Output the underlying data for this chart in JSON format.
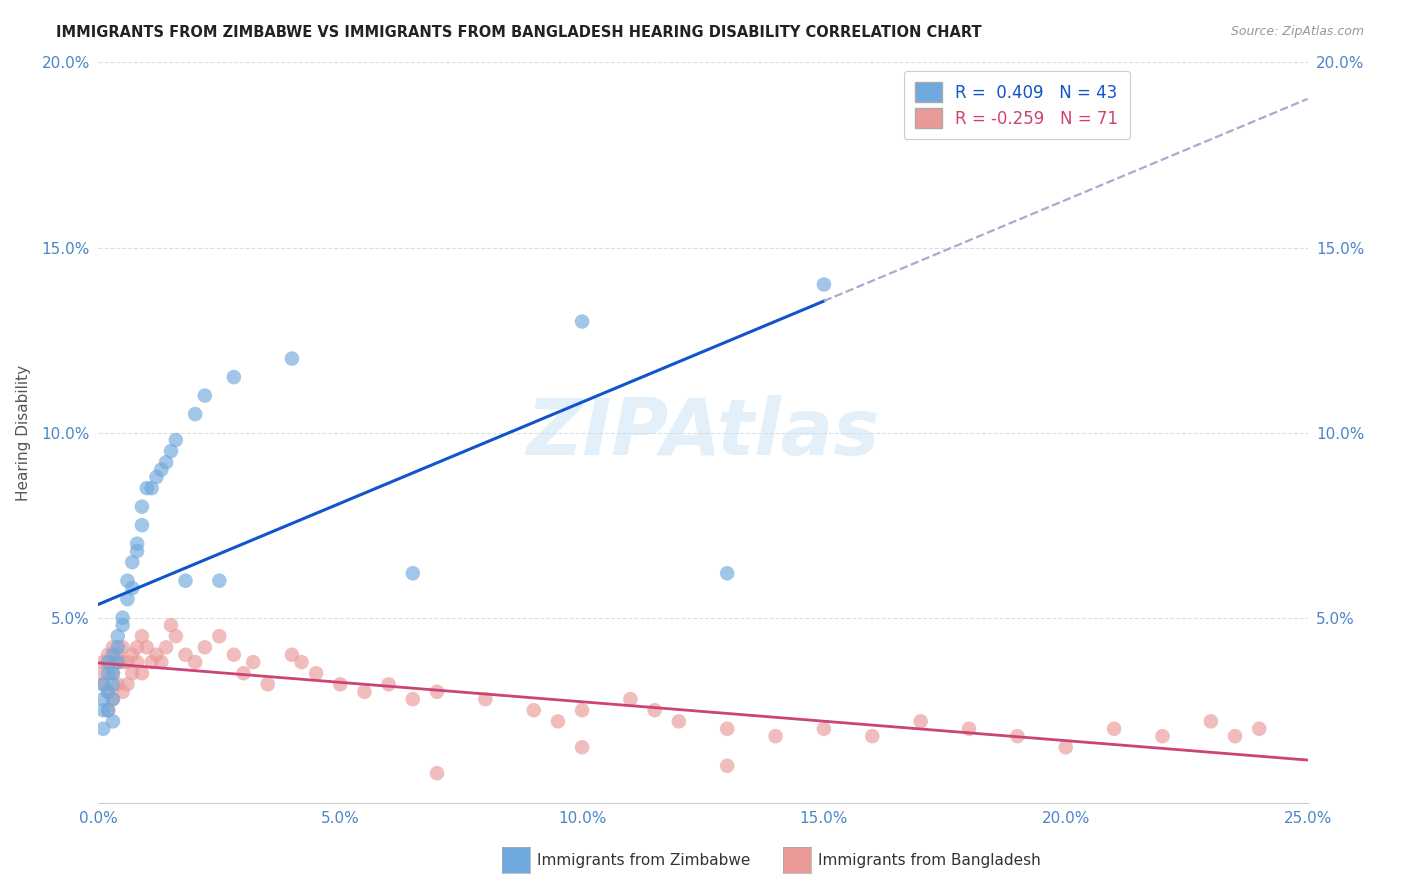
{
  "title": "IMMIGRANTS FROM ZIMBABWE VS IMMIGRANTS FROM BANGLADESH HEARING DISABILITY CORRELATION CHART",
  "source": "Source: ZipAtlas.com",
  "ylabel": "Hearing Disability",
  "xlim": [
    0.0,
    0.25
  ],
  "ylim": [
    0.0,
    0.2
  ],
  "xticks": [
    0.0,
    0.05,
    0.1,
    0.15,
    0.2,
    0.25
  ],
  "yticks": [
    0.0,
    0.05,
    0.1,
    0.15,
    0.2
  ],
  "zimbabwe_color": "#6fa8dc",
  "bangladesh_color": "#ea9999",
  "zimbabwe_trend_color": "#1155cc",
  "bangladesh_trend_color": "#cc4477",
  "dashed_trend_color": "#aaaacc",
  "legend_label1": "Immigrants from Zimbabwe",
  "legend_label2": "Immigrants from Bangladesh",
  "tick_color": "#4a86c8",
  "watermark_color": "#cce4f5",
  "zim_x": [
    0.001,
    0.001,
    0.001,
    0.001,
    0.002,
    0.002,
    0.002,
    0.002,
    0.003,
    0.003,
    0.003,
    0.003,
    0.003,
    0.004,
    0.004,
    0.004,
    0.005,
    0.005,
    0.006,
    0.006,
    0.007,
    0.007,
    0.008,
    0.008,
    0.009,
    0.009,
    0.01,
    0.011,
    0.012,
    0.013,
    0.014,
    0.015,
    0.016,
    0.018,
    0.02,
    0.022,
    0.025,
    0.028,
    0.04,
    0.065,
    0.1,
    0.13,
    0.15
  ],
  "zim_y": [
    0.028,
    0.032,
    0.025,
    0.02,
    0.035,
    0.038,
    0.03,
    0.025,
    0.04,
    0.035,
    0.032,
    0.028,
    0.022,
    0.045,
    0.042,
    0.038,
    0.05,
    0.048,
    0.055,
    0.06,
    0.058,
    0.065,
    0.07,
    0.068,
    0.075,
    0.08,
    0.085,
    0.085,
    0.088,
    0.09,
    0.092,
    0.095,
    0.098,
    0.06,
    0.105,
    0.11,
    0.06,
    0.115,
    0.12,
    0.062,
    0.13,
    0.062,
    0.14
  ],
  "ban_x": [
    0.001,
    0.001,
    0.001,
    0.002,
    0.002,
    0.002,
    0.002,
    0.003,
    0.003,
    0.003,
    0.003,
    0.004,
    0.004,
    0.004,
    0.005,
    0.005,
    0.005,
    0.006,
    0.006,
    0.007,
    0.007,
    0.008,
    0.008,
    0.009,
    0.009,
    0.01,
    0.011,
    0.012,
    0.013,
    0.014,
    0.015,
    0.016,
    0.018,
    0.02,
    0.022,
    0.025,
    0.028,
    0.03,
    0.032,
    0.035,
    0.04,
    0.042,
    0.045,
    0.05,
    0.055,
    0.06,
    0.065,
    0.07,
    0.08,
    0.09,
    0.095,
    0.1,
    0.11,
    0.115,
    0.12,
    0.13,
    0.14,
    0.15,
    0.16,
    0.17,
    0.18,
    0.19,
    0.2,
    0.21,
    0.22,
    0.23,
    0.235,
    0.24,
    0.1,
    0.13,
    0.07
  ],
  "ban_y": [
    0.035,
    0.038,
    0.032,
    0.04,
    0.038,
    0.03,
    0.025,
    0.042,
    0.038,
    0.035,
    0.028,
    0.04,
    0.038,
    0.032,
    0.042,
    0.038,
    0.03,
    0.038,
    0.032,
    0.04,
    0.035,
    0.042,
    0.038,
    0.045,
    0.035,
    0.042,
    0.038,
    0.04,
    0.038,
    0.042,
    0.048,
    0.045,
    0.04,
    0.038,
    0.042,
    0.045,
    0.04,
    0.035,
    0.038,
    0.032,
    0.04,
    0.038,
    0.035,
    0.032,
    0.03,
    0.032,
    0.028,
    0.03,
    0.028,
    0.025,
    0.022,
    0.025,
    0.028,
    0.025,
    0.022,
    0.02,
    0.018,
    0.02,
    0.018,
    0.022,
    0.02,
    0.018,
    0.015,
    0.02,
    0.018,
    0.022,
    0.018,
    0.02,
    0.015,
    0.01,
    0.008
  ]
}
